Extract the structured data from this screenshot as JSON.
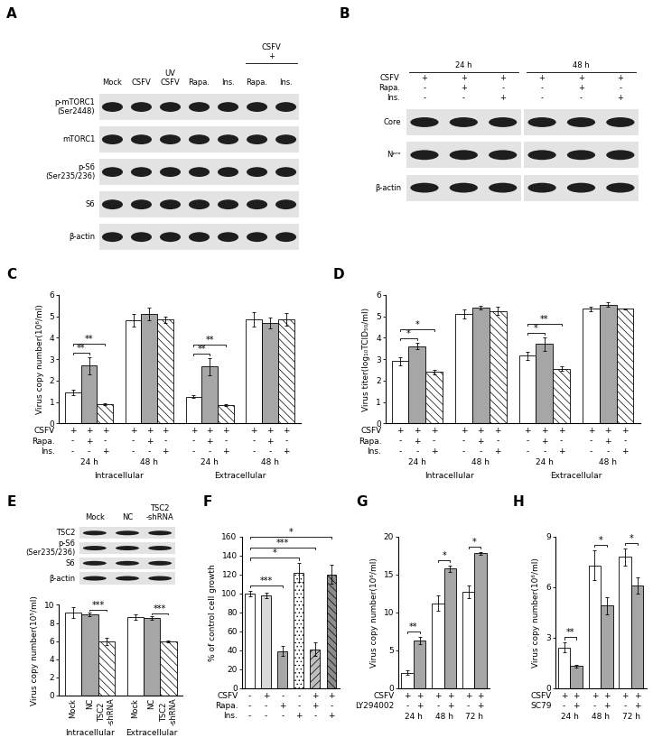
{
  "chart_data": [
    {
      "panel": "C",
      "type": "bar",
      "ylabel": "Virus copy number(10⁶/ml)",
      "categories": [
        "24 h",
        "48 h",
        "24 h",
        "48 h"
      ],
      "groups": [
        {
          "label": "Intracellular",
          "categories": [
            0,
            1
          ]
        },
        {
          "label": "Extracellular",
          "categories": [
            2,
            3
          ]
        }
      ],
      "series": [
        {
          "color": "#ffffff",
          "values": [
            1.45,
            4.8,
            1.25,
            4.85
          ],
          "errors": [
            0.12,
            0.3,
            0.06,
            0.35
          ]
        },
        {
          "color": "#a6a6a6",
          "values": [
            2.7,
            5.1,
            2.65,
            4.7
          ],
          "errors": [
            0.4,
            0.3,
            0.4,
            0.25
          ]
        },
        {
          "color": "#ffffff",
          "values": [
            0.9,
            4.85,
            0.85,
            4.85
          ],
          "errors": [
            0.05,
            0.15,
            0.05,
            0.3
          ]
        }
      ],
      "conditions": [
        {
          "label": "CSFV",
          "marks": [
            "+",
            "+",
            "+",
            "+",
            "+",
            "+",
            "+",
            "+",
            "+",
            "+",
            "+",
            "+"
          ]
        },
        {
          "label": "Rapa.",
          "marks": [
            "-",
            "+",
            "-",
            "-",
            "+",
            "-",
            "-",
            "+",
            "-",
            "-",
            "+",
            "-"
          ]
        },
        {
          "label": "Ins.",
          "marks": [
            "-",
            "-",
            "+",
            "-",
            "-",
            "+",
            "-",
            "-",
            "+",
            "-",
            "-",
            "+"
          ]
        }
      ],
      "annotations": [
        {
          "text": "**",
          "bars": [
            0,
            1
          ]
        },
        {
          "text": "**",
          "bars": [
            0,
            2
          ]
        },
        {
          "text": "**",
          "bars": [
            6,
            7
          ]
        },
        {
          "text": "**",
          "bars": [
            6,
            8
          ]
        }
      ],
      "ylim": [
        0,
        6
      ],
      "yticks": [
        0,
        1,
        2,
        3,
        4,
        5,
        6
      ]
    },
    {
      "panel": "D",
      "type": "bar",
      "ylabel": "Virus titer(log₁₀TCID₅₀/ml)",
      "categories": [
        "24 h",
        "48 h",
        "24 h",
        "48 h"
      ],
      "groups": [
        {
          "label": "Intracellular",
          "categories": [
            0,
            1
          ]
        },
        {
          "label": "Extracellular",
          "categories": [
            2,
            3
          ]
        }
      ],
      "series": [
        {
          "color": "#ffffff",
          "values": [
            2.9,
            5.1,
            3.15,
            5.35
          ],
          "errors": [
            0.2,
            0.2,
            0.2,
            0.1
          ]
        },
        {
          "color": "#a6a6a6",
          "values": [
            3.6,
            5.4,
            3.7,
            5.55
          ],
          "errors": [
            0.15,
            0.1,
            0.3,
            0.1
          ]
        },
        {
          "color": "#ffffff",
          "values": [
            2.4,
            5.25,
            2.55,
            5.35
          ],
          "errors": [
            0.1,
            0.2,
            0.1,
            0.02
          ]
        }
      ],
      "conditions": [
        {
          "label": "CSFV",
          "marks": [
            "+",
            "+",
            "+",
            "+",
            "+",
            "+",
            "+",
            "+",
            "+",
            "+",
            "+",
            "+"
          ]
        },
        {
          "label": "Rapa.",
          "marks": [
            "-",
            "+",
            "-",
            "-",
            "+",
            "-",
            "-",
            "+",
            "-",
            "-",
            "+",
            "-"
          ]
        },
        {
          "label": "Ins.",
          "marks": [
            "-",
            "-",
            "+",
            "-",
            "-",
            "+",
            "-",
            "-",
            "+",
            "-",
            "-",
            "+"
          ]
        }
      ],
      "annotations": [
        {
          "text": "*",
          "bars": [
            0,
            1
          ]
        },
        {
          "text": "*",
          "bars": [
            0,
            2
          ]
        },
        {
          "text": "*",
          "bars": [
            6,
            7
          ]
        },
        {
          "text": "**",
          "bars": [
            6,
            8
          ]
        }
      ],
      "ylim": [
        0,
        6
      ],
      "yticks": [
        0,
        1,
        2,
        3,
        4,
        5,
        6
      ]
    },
    {
      "type": "bar",
      "ylabel": "Virus copy number(10⁵/ml)",
      "categories": [
        "Intracellular",
        "Extracellular"
      ],
      "series": [
        {
          "name": "Mock",
          "color": "#ffffff",
          "values": [
            9.1,
            8.6
          ],
          "errors": [
            0.6,
            0.3
          ]
        },
        {
          "name": "NC",
          "color": "#a6a6a6",
          "values": [
            8.9,
            8.5
          ],
          "errors": [
            0.2,
            0.2
          ]
        },
        {
          "name": "TSC2\n-shRNA",
          "color": "#ffffff",
          "values": [
            6.0,
            5.95
          ],
          "errors": [
            0.4,
            0.1
          ]
        }
      ],
      "annotations": [
        {
          "text": "***",
          "bars": [
            1,
            2
          ]
        },
        {
          "text": "***",
          "bars": [
            4,
            5
          ]
        }
      ],
      "ylim": [
        0,
        10
      ],
      "yticks": [
        0,
        2,
        4,
        6,
        8,
        10
      ]
    },
    {
      "panel": "F",
      "type": "bar",
      "ylabel": "% of control cell growth",
      "values": [
        100,
        98,
        39,
        122,
        41,
        120
      ],
      "errors": [
        3,
        3,
        5,
        10,
        7,
        10
      ],
      "colors": [
        "#ffffff",
        "#d9d9d9",
        "#a6a6a6",
        "#ffffff",
        "#bfbfbf",
        "#8c8c8c"
      ],
      "conditions": [
        {
          "label": "CSFV",
          "marks": [
            "-",
            "+",
            "-",
            "-",
            "+",
            "+"
          ]
        },
        {
          "label": "Rapa.",
          "marks": [
            "-",
            "-",
            "+",
            "-",
            "+",
            "-"
          ]
        },
        {
          "label": "Ins.",
          "marks": [
            "-",
            "-",
            "-",
            "+",
            "-",
            "+"
          ]
        }
      ],
      "annotations": [
        {
          "text": "***",
          "bars": [
            0,
            2
          ]
        },
        {
          "text": "*",
          "bars": [
            0,
            3
          ]
        },
        {
          "text": "***",
          "bars": [
            0,
            4
          ]
        },
        {
          "text": "*",
          "bars": [
            0,
            5
          ]
        }
      ],
      "tick_labels": "y",
      "ylim": [
        0,
        160
      ],
      "yticks": [
        0,
        20,
        40,
        60,
        80,
        100,
        120,
        140,
        160
      ]
    },
    {
      "panel": "G",
      "type": "bar",
      "ylabel": "Virus copy number(10⁶/ml)",
      "categories": [
        "24 h",
        "48 h",
        "72 h"
      ],
      "series": [
        {
          "color": "#ffffff",
          "values": [
            2.0,
            11.2,
            12.7
          ],
          "errors": [
            0.3,
            1.0,
            0.8
          ]
        },
        {
          "color": "#a6a6a6",
          "values": [
            6.3,
            15.8,
            17.8
          ],
          "errors": [
            0.5,
            0.4,
            0.2
          ]
        }
      ],
      "conditions": [
        {
          "label": "CSFV",
          "marks": [
            "+",
            "+",
            "+",
            "+",
            "+",
            "+"
          ]
        },
        {
          "label": "LY294002",
          "marks": [
            "-",
            "+",
            "-",
            "+",
            "-",
            "+"
          ]
        }
      ],
      "annotations": [
        {
          "text": "**",
          "bars": [
            0,
            1
          ]
        },
        {
          "text": "*",
          "bars": [
            2,
            3
          ]
        },
        {
          "text": "*",
          "bars": [
            4,
            5
          ]
        }
      ],
      "ylim": [
        0,
        20
      ],
      "yticks": [
        0,
        5,
        10,
        15,
        20
      ]
    },
    {
      "panel": "H",
      "type": "bar",
      "ylabel": "Virus copy number(10⁶/ml)",
      "categories": [
        "24 h",
        "48 h",
        "72 h"
      ],
      "series": [
        {
          "color": "#ffffff",
          "values": [
            2.4,
            7.3,
            7.8
          ],
          "errors": [
            0.3,
            0.9,
            0.5
          ]
        },
        {
          "color": "#a6a6a6",
          "values": [
            1.3,
            4.9,
            6.1
          ],
          "errors": [
            0.1,
            0.5,
            0.5
          ]
        }
      ],
      "conditions": [
        {
          "label": "CSFV",
          "marks": [
            "+",
            "+",
            "+",
            "+",
            "+",
            "+"
          ]
        },
        {
          "label": "SC79",
          "marks": [
            "-",
            "+",
            "-",
            "+",
            "-",
            "+"
          ]
        }
      ],
      "annotations": [
        {
          "text": "**",
          "bars": [
            0,
            1
          ]
        },
        {
          "text": "*",
          "bars": [
            2,
            3
          ]
        },
        {
          "text": "*",
          "bars": [
            4,
            5
          ]
        }
      ],
      "ylim": [
        0,
        9
      ],
      "yticks": [
        0,
        3,
        6,
        9
      ]
    }
  ],
  "blots": [
    {
      "panel": "A",
      "lanes": [
        "Mock",
        "CSFV",
        "UV\nCSFV",
        "Rapa.",
        "Ins.",
        "Rapa.",
        "Ins."
      ],
      "lane_groups": [
        {
          "label": "CSFV\n+",
          "lanes": [
            5,
            6
          ]
        }
      ],
      "rows": [
        "p-mTORC1\n(Ser2448)",
        "mTORC1",
        "p-S6\n(Ser235/236)",
        "S6",
        "β-actin"
      ]
    },
    {
      "panel": "B",
      "lane_groups": [
        {
          "label": "24 h",
          "lanes": [
            0,
            1,
            2
          ]
        },
        {
          "label": "48 h",
          "lanes": [
            3,
            4,
            5
          ]
        }
      ],
      "conditions": [
        {
          "label": "CSFV",
          "marks": [
            "+",
            "+",
            "+",
            "+",
            "+",
            "+"
          ]
        },
        {
          "label": "Rapa.",
          "marks": [
            "-",
            "+",
            "-",
            "-",
            "+",
            "-"
          ]
        },
        {
          "label": "Ins.",
          "marks": [
            "-",
            "-",
            "+",
            "-",
            "-",
            "+"
          ]
        }
      ],
      "rows": [
        "Core",
        "Nᵖʳᵒ",
        "β-actin"
      ]
    },
    {
      "panel": "E",
      "lanes": [
        "Mock",
        "NC",
        "TSC2\n-shRNA"
      ],
      "rows": [
        "TSC2",
        "p-S6\n(Ser235/236)",
        "S6",
        "β-actin"
      ]
    }
  ]
}
